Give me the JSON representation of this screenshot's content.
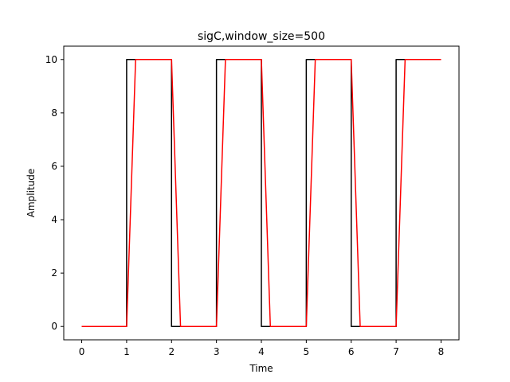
{
  "chart_data": {
    "type": "line",
    "title": "sigC,window_size=500",
    "xlabel": "Time",
    "ylabel": "Amplitude",
    "xlim": [
      -0.4,
      8.4
    ],
    "ylim": [
      -0.5,
      10.5
    ],
    "xticks": [
      0,
      1,
      2,
      3,
      4,
      5,
      6,
      7,
      8
    ],
    "yticks": [
      0,
      2,
      4,
      6,
      8,
      10
    ],
    "grid": false,
    "series": [
      {
        "color": "#000000",
        "x": [
          0,
          1,
          1,
          2,
          2,
          3,
          3,
          4,
          4,
          5,
          5,
          6,
          6,
          7,
          7,
          8
        ],
        "y": [
          0,
          0,
          10,
          10,
          0,
          0,
          10,
          10,
          0,
          0,
          10,
          10,
          0,
          0,
          10,
          10
        ]
      },
      {
        "color": "#ff0000",
        "x": [
          0,
          1,
          1.2,
          2,
          2.2,
          3,
          3.2,
          4,
          4.2,
          5,
          5.2,
          6,
          6.2,
          7,
          7.2,
          8
        ],
        "y": [
          0,
          0,
          10,
          10,
          0,
          0,
          10,
          10,
          0,
          0,
          10,
          10,
          0,
          0,
          10,
          10
        ]
      }
    ]
  }
}
